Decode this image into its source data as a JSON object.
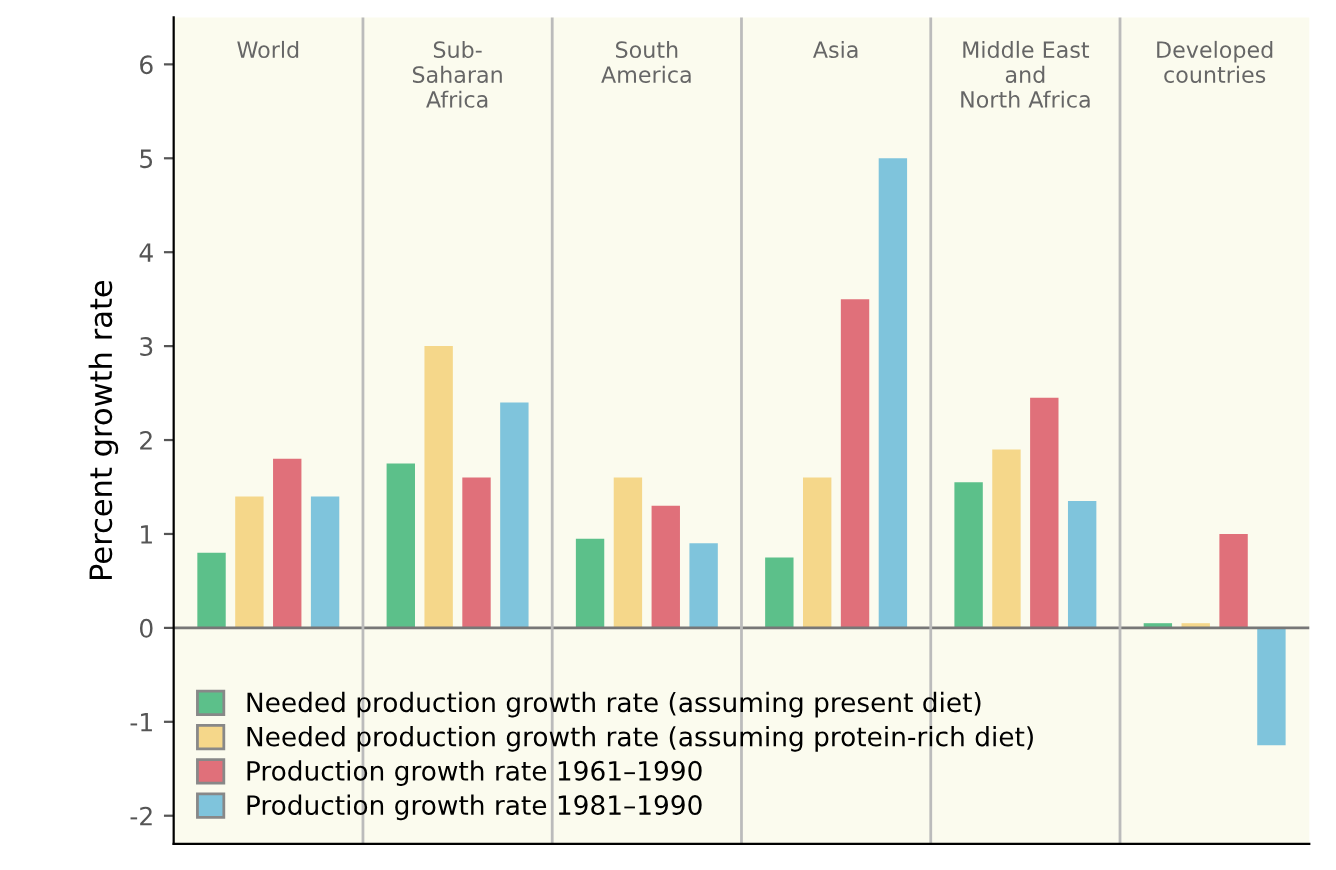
{
  "chart_data": {
    "type": "bar",
    "categories": [
      "World",
      "Sub-\nSaharan\nAfrica",
      "South\nAmerica",
      "Asia",
      "Middle East\nand\nNorth Africa",
      "Developed\ncountries"
    ],
    "ylabel": "Percent growth rate",
    "series": [
      {
        "name": "Needed production growth rate (assuming present diet)",
        "color": "#5cc08a",
        "values": [
          0.8,
          1.75,
          0.95,
          0.75,
          1.55,
          0.05
        ]
      },
      {
        "name": "Needed production growth rate (assuming protein-rich diet)",
        "color": "#f5d78a",
        "values": [
          1.4,
          3.0,
          1.6,
          1.6,
          1.9,
          0.05
        ]
      },
      {
        "name": "Production growth rate 1961–1990",
        "color": "#e0707a",
        "values": [
          1.8,
          1.6,
          1.3,
          3.5,
          2.45,
          1.0
        ]
      },
      {
        "name": "Production growth rate 1981–1990",
        "color": "#7fc4dc",
        "values": [
          1.4,
          2.4,
          0.9,
          5.0,
          1.35,
          -1.25
        ]
      }
    ],
    "ylim": [
      -2.3,
      6.5
    ],
    "yticks": [
      -2,
      -1,
      0,
      1,
      2,
      3,
      4,
      5,
      6
    ],
    "grid": false,
    "legend": "bottom left"
  }
}
